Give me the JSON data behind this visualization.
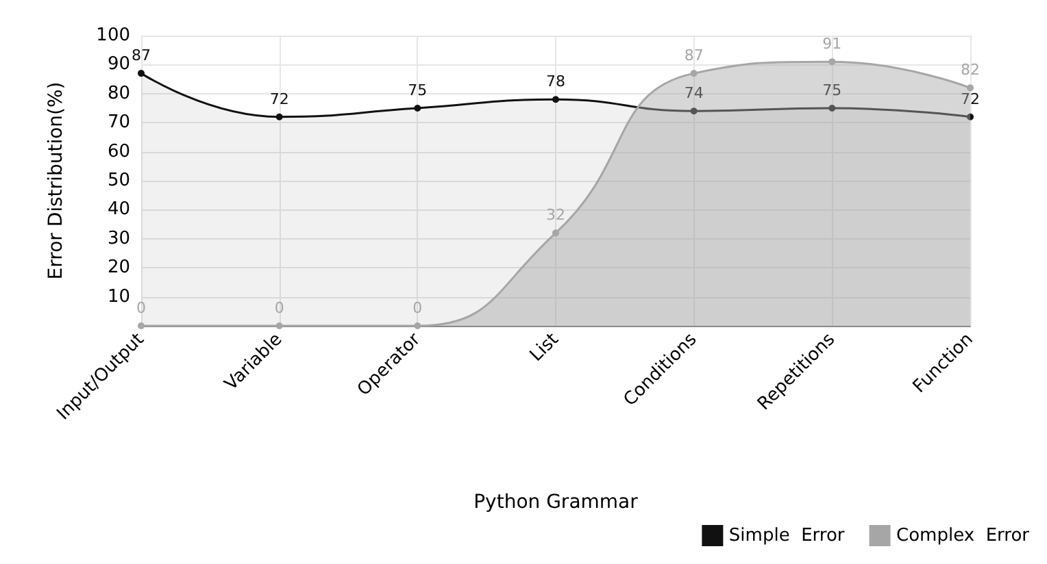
{
  "chart_data": {
    "type": "area",
    "xlabel": "Python Grammar",
    "ylabel": "Error Distribution(%)",
    "categories": [
      "Input/Output",
      "Variable",
      "Operator",
      "List",
      "Conditions",
      "Repetitions",
      "Function"
    ],
    "series": [
      {
        "name": "Simple  Error",
        "color": "#111111",
        "values": [
          87,
          72,
          75,
          78,
          74,
          75,
          72
        ]
      },
      {
        "name": "Complex  Error",
        "color": "#a6a6a6",
        "values": [
          0,
          0,
          0,
          32,
          87,
          91,
          82
        ]
      }
    ],
    "ylim": [
      0,
      100
    ],
    "yticks": [
      {
        "value": 0,
        "label": null
      },
      10,
      20,
      30,
      40,
      50,
      60,
      70,
      80,
      90,
      100
    ],
    "grid": true,
    "legend": "bottom right",
    "data_labels": true,
    "marker": "circle",
    "line_style": "solid"
  }
}
